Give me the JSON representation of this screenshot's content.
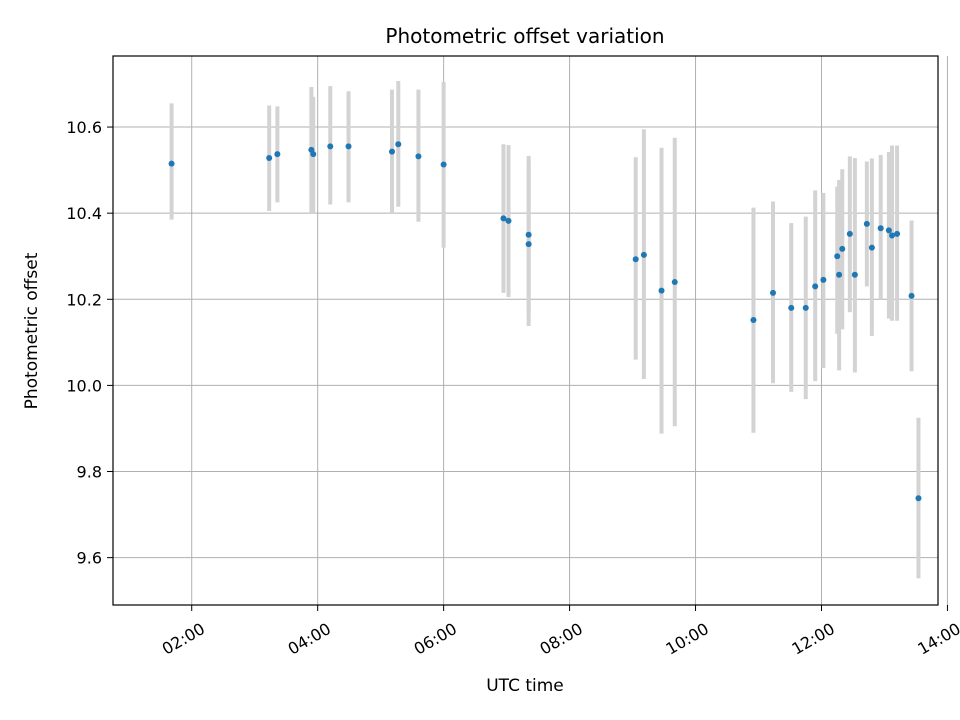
{
  "chart_data": {
    "type": "scatter",
    "title": "Photometric offset variation",
    "xlabel": "UTC time",
    "ylabel": "Photometric offset",
    "x_unit": "hours UTC",
    "xlim": [
      0.75,
      13.85
    ],
    "ylim": [
      9.49,
      10.765
    ],
    "grid": true,
    "colors": {
      "marker": "#1f77b4",
      "errorbar": "#d3d3d3",
      "grid": "#b0b0b0"
    },
    "x_ticks": [
      {
        "value": 2,
        "label": "02:00"
      },
      {
        "value": 4,
        "label": "04:00"
      },
      {
        "value": 6,
        "label": "06:00"
      },
      {
        "value": 8,
        "label": "08:00"
      },
      {
        "value": 10,
        "label": "10:00"
      },
      {
        "value": 12,
        "label": "12:00"
      },
      {
        "value": 14,
        "label": "14:00"
      }
    ],
    "y_ticks": [
      {
        "value": 9.6,
        "label": "9.6"
      },
      {
        "value": 9.8,
        "label": "9.8"
      },
      {
        "value": 10.0,
        "label": "10.0"
      },
      {
        "value": 10.2,
        "label": "10.2"
      },
      {
        "value": 10.4,
        "label": "10.4"
      },
      {
        "value": 10.6,
        "label": "10.6"
      }
    ],
    "points": [
      {
        "x": 1.68,
        "y": 10.515,
        "lo": 10.385,
        "hi": 10.655
      },
      {
        "x": 3.23,
        "y": 10.528,
        "lo": 10.405,
        "hi": 10.65
      },
      {
        "x": 3.36,
        "y": 10.537,
        "lo": 10.425,
        "hi": 10.648
      },
      {
        "x": 3.9,
        "y": 10.547,
        "lo": 10.4,
        "hi": 10.693
      },
      {
        "x": 3.93,
        "y": 10.537,
        "lo": 10.4,
        "hi": 10.67
      },
      {
        "x": 4.2,
        "y": 10.555,
        "lo": 10.42,
        "hi": 10.695
      },
      {
        "x": 4.49,
        "y": 10.555,
        "lo": 10.425,
        "hi": 10.683
      },
      {
        "x": 5.18,
        "y": 10.543,
        "lo": 10.4,
        "hi": 10.687
      },
      {
        "x": 5.28,
        "y": 10.56,
        "lo": 10.415,
        "hi": 10.707
      },
      {
        "x": 5.6,
        "y": 10.532,
        "lo": 10.38,
        "hi": 10.687
      },
      {
        "x": 6.0,
        "y": 10.513,
        "lo": 10.32,
        "hi": 10.705
      },
      {
        "x": 6.95,
        "y": 10.388,
        "lo": 10.215,
        "hi": 10.56
      },
      {
        "x": 7.03,
        "y": 10.382,
        "lo": 10.205,
        "hi": 10.558
      },
      {
        "x": 7.35,
        "y": 10.35,
        "lo": 10.165,
        "hi": 10.533
      },
      {
        "x": 7.35,
        "y": 10.328,
        "lo": 10.138,
        "hi": 10.52
      },
      {
        "x": 9.05,
        "y": 10.293,
        "lo": 10.06,
        "hi": 10.53
      },
      {
        "x": 9.18,
        "y": 10.303,
        "lo": 10.015,
        "hi": 10.595
      },
      {
        "x": 9.46,
        "y": 10.22,
        "lo": 9.888,
        "hi": 10.552
      },
      {
        "x": 9.67,
        "y": 10.24,
        "lo": 9.905,
        "hi": 10.575
      },
      {
        "x": 10.92,
        "y": 10.152,
        "lo": 9.89,
        "hi": 10.413
      },
      {
        "x": 11.23,
        "y": 10.215,
        "lo": 10.005,
        "hi": 10.427
      },
      {
        "x": 11.52,
        "y": 10.18,
        "lo": 9.985,
        "hi": 10.377
      },
      {
        "x": 11.75,
        "y": 10.18,
        "lo": 9.968,
        "hi": 10.392
      },
      {
        "x": 11.9,
        "y": 10.23,
        "lo": 10.01,
        "hi": 10.453
      },
      {
        "x": 12.03,
        "y": 10.245,
        "lo": 10.04,
        "hi": 10.447
      },
      {
        "x": 12.25,
        "y": 10.3,
        "lo": 10.12,
        "hi": 10.462
      },
      {
        "x": 12.28,
        "y": 10.257,
        "lo": 10.035,
        "hi": 10.477
      },
      {
        "x": 12.33,
        "y": 10.317,
        "lo": 10.13,
        "hi": 10.502
      },
      {
        "x": 12.45,
        "y": 10.352,
        "lo": 10.17,
        "hi": 10.532
      },
      {
        "x": 12.53,
        "y": 10.257,
        "lo": 10.03,
        "hi": 10.528
      },
      {
        "x": 12.72,
        "y": 10.375,
        "lo": 10.23,
        "hi": 10.52
      },
      {
        "x": 12.8,
        "y": 10.32,
        "lo": 10.115,
        "hi": 10.527
      },
      {
        "x": 12.94,
        "y": 10.365,
        "lo": 10.2,
        "hi": 10.535
      },
      {
        "x": 13.07,
        "y": 10.36,
        "lo": 10.155,
        "hi": 10.542
      },
      {
        "x": 13.12,
        "y": 10.348,
        "lo": 10.15,
        "hi": 10.557
      },
      {
        "x": 13.2,
        "y": 10.352,
        "lo": 10.15,
        "hi": 10.557
      },
      {
        "x": 13.43,
        "y": 10.208,
        "lo": 10.033,
        "hi": 10.383
      },
      {
        "x": 13.54,
        "y": 9.738,
        "lo": 9.552,
        "hi": 9.925
      }
    ]
  }
}
